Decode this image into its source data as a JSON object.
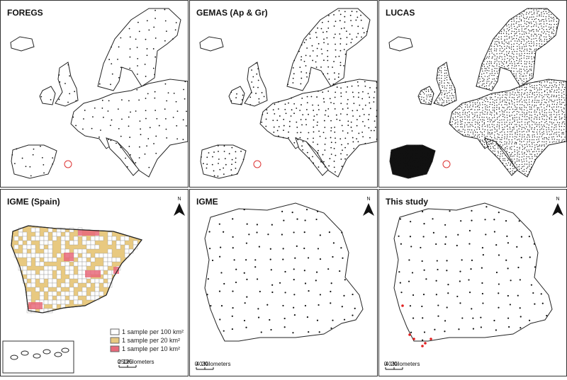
{
  "panels": [
    {
      "title": "FOREGS"
    },
    {
      "title": "GEMAS (Ap & Gr)"
    },
    {
      "title": "LUCAS"
    },
    {
      "title": "IGME (Spain)",
      "north": "N",
      "legend": [
        "1 sample per 100 km²",
        "1 sample per 20 km²",
        "1 sample per 10 km²"
      ],
      "scale": [
        "0",
        "125",
        "250Kilometers"
      ]
    },
    {
      "title": "IGME",
      "north": "N",
      "scale": [
        "0",
        "20",
        "40 Kilometers"
      ]
    },
    {
      "title": "This study",
      "north": "N",
      "scale": [
        "0",
        "20",
        "40 Kilometers"
      ]
    }
  ]
}
